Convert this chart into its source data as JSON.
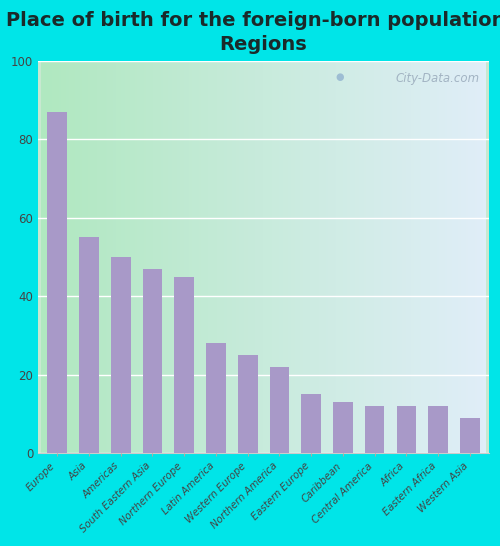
{
  "title": "Place of birth for the foreign-born population -\nRegions",
  "categories": [
    "Europe",
    "Asia",
    "Americas",
    "South Eastern Asia",
    "Northern Europe",
    "Latin America",
    "Western Europe",
    "Northern America",
    "Eastern Europe",
    "Caribbean",
    "Central America",
    "Africa",
    "Eastern Africa",
    "Western Asia"
  ],
  "values": [
    87,
    55,
    50,
    47,
    45,
    28,
    25,
    22,
    15,
    13,
    12,
    12,
    12,
    9
  ],
  "bar_color": "#a899c8",
  "background_color": "#00e5e8",
  "ylim": [
    0,
    100
  ],
  "yticks": [
    0,
    20,
    40,
    60,
    80,
    100
  ],
  "title_fontsize": 14,
  "watermark_text": "City-Data.com",
  "plot_bg_left": "#b8e8c8",
  "plot_bg_right": "#e8eef5"
}
